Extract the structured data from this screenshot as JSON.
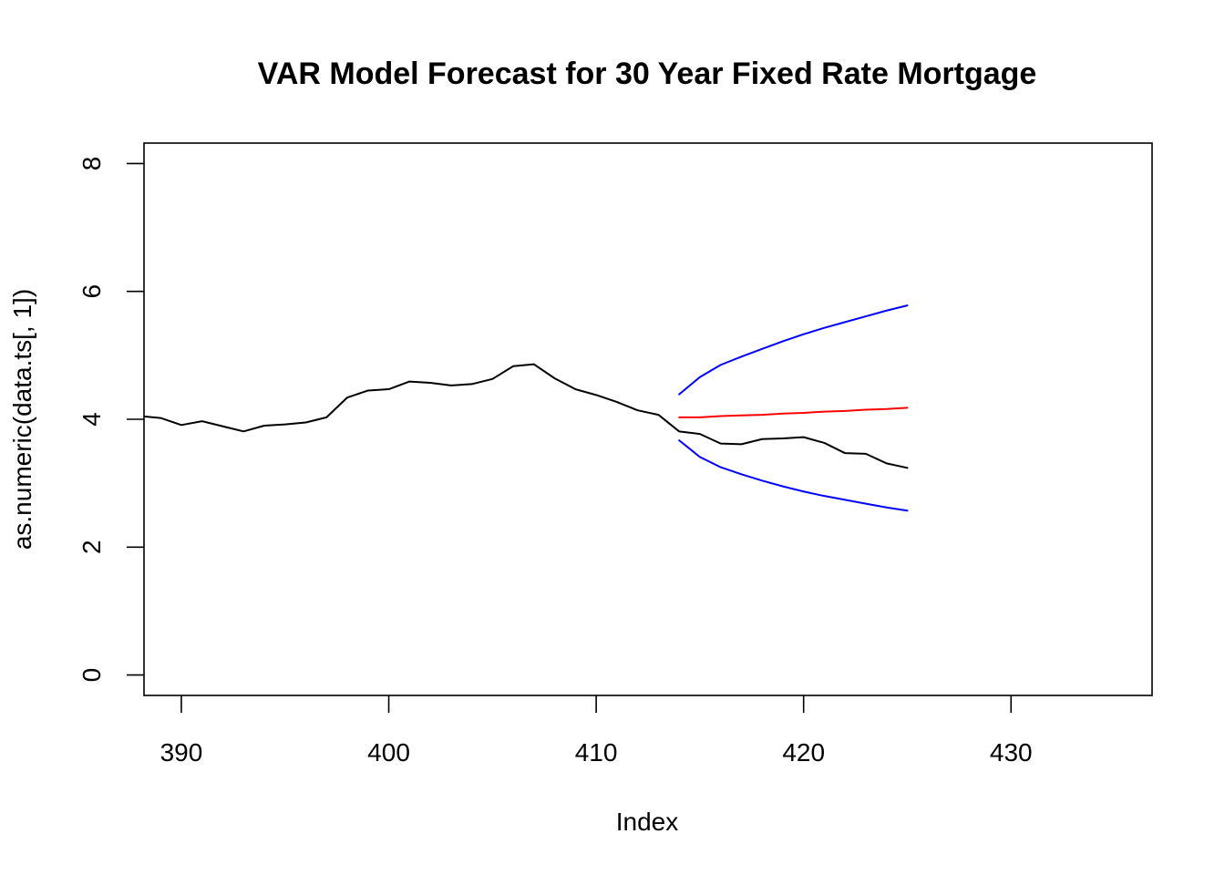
{
  "chart_data": {
    "type": "line",
    "title": "VAR Model Forecast for 30 Year Fixed Rate Mortgage",
    "xlabel": "Index",
    "ylabel": "as.numeric(data.ts[, 1])",
    "xlim": [
      388.2,
      436.8
    ],
    "ylim": [
      -0.32,
      8.32
    ],
    "x_ticks": [
      390,
      400,
      410,
      420,
      430
    ],
    "y_ticks": [
      0,
      2,
      4,
      6,
      8
    ],
    "grid": false,
    "legend": "none",
    "series": [
      {
        "color": "#000000",
        "x": [
          388,
          389,
          390,
          391,
          392,
          393,
          394,
          395,
          396,
          397,
          398,
          399,
          400,
          401,
          402,
          403,
          404,
          405,
          406,
          407,
          408,
          409,
          410,
          411,
          412,
          413,
          414,
          415,
          416,
          417,
          418,
          419,
          420,
          421,
          422,
          423,
          424,
          425
        ],
        "y": [
          4.05,
          4.02,
          3.91,
          3.97,
          3.89,
          3.81,
          3.9,
          3.92,
          3.95,
          4.03,
          4.34,
          4.45,
          4.47,
          4.59,
          4.57,
          4.53,
          4.55,
          4.63,
          4.83,
          4.86,
          4.64,
          4.47,
          4.38,
          4.27,
          4.14,
          4.07,
          3.81,
          3.77,
          3.62,
          3.61,
          3.69,
          3.7,
          3.72,
          3.63,
          3.47,
          3.46,
          3.31,
          3.24
        ]
      },
      {
        "color": "#ff0000",
        "x": [
          414,
          415,
          416,
          417,
          418,
          419,
          420,
          421,
          422,
          423,
          424,
          425
        ],
        "y": [
          4.03,
          4.03,
          4.05,
          4.06,
          4.07,
          4.09,
          4.1,
          4.12,
          4.13,
          4.15,
          4.16,
          4.18
        ]
      },
      {
        "color": "#0000ff",
        "x": [
          414,
          415,
          416,
          417,
          418,
          419,
          420,
          421,
          422,
          423,
          424,
          425
        ],
        "y": [
          4.39,
          4.66,
          4.85,
          4.98,
          5.1,
          5.22,
          5.33,
          5.43,
          5.52,
          5.61,
          5.7,
          5.78
        ]
      },
      {
        "color": "#0000ff",
        "x": [
          414,
          415,
          416,
          417,
          418,
          419,
          420,
          421,
          422,
          423,
          424,
          425
        ],
        "y": [
          3.67,
          3.41,
          3.25,
          3.14,
          3.04,
          2.95,
          2.87,
          2.8,
          2.74,
          2.68,
          2.62,
          2.57
        ]
      }
    ]
  }
}
